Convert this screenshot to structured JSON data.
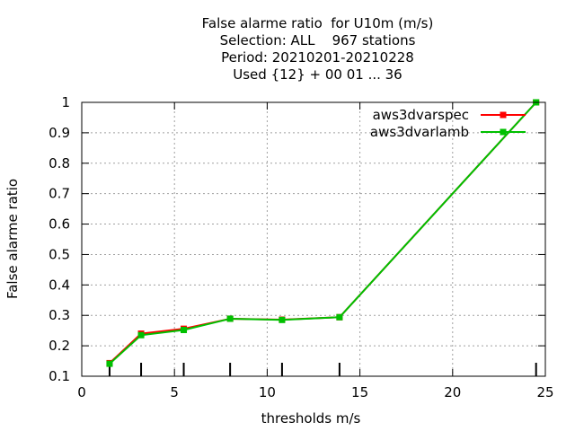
{
  "chart_data": {
    "type": "line",
    "title_lines": [
      "False alarme ratio  for U10m (m/s)",
      "Selection: ALL    967 stations",
      "Period: 20210201-20210228",
      "Used {12} + 00 01 ... 36"
    ],
    "xlabel": "thresholds m/s",
    "ylabel": "False alarme ratio",
    "xlim": [
      0,
      25
    ],
    "ylim": [
      0.1,
      1.0
    ],
    "x_ticks": [
      0,
      5,
      10,
      15,
      20,
      25
    ],
    "y_ticks": [
      0.1,
      0.2,
      0.3,
      0.4,
      0.5,
      0.6,
      0.7,
      0.8,
      0.9,
      1.0
    ],
    "x_tick_labels": [
      "0",
      "5",
      "10",
      "15",
      "20",
      "25"
    ],
    "y_tick_labels": [
      "0.1",
      "0.2",
      "0.3",
      "0.4",
      "0.5",
      "0.6",
      "0.7",
      "0.8",
      "0.9",
      "1"
    ],
    "grid": true,
    "legend_position": "top-right",
    "threshold_markers": [
      1.5,
      3.2,
      5.5,
      8.0,
      10.8,
      13.9,
      24.5
    ],
    "series": [
      {
        "name": "aws3dvarspec",
        "color": "#ff0000",
        "x": [
          1.5,
          3.2,
          5.5,
          8.0,
          10.8,
          13.9,
          24.5
        ],
        "y": [
          0.143,
          0.24,
          0.256,
          0.289,
          0.286,
          0.294,
          1.0
        ]
      },
      {
        "name": "aws3dvarlamb",
        "color": "#00c000",
        "x": [
          1.5,
          3.2,
          5.5,
          8.0,
          10.8,
          13.9,
          24.5
        ],
        "y": [
          0.141,
          0.235,
          0.252,
          0.289,
          0.285,
          0.294,
          1.0
        ]
      }
    ]
  }
}
